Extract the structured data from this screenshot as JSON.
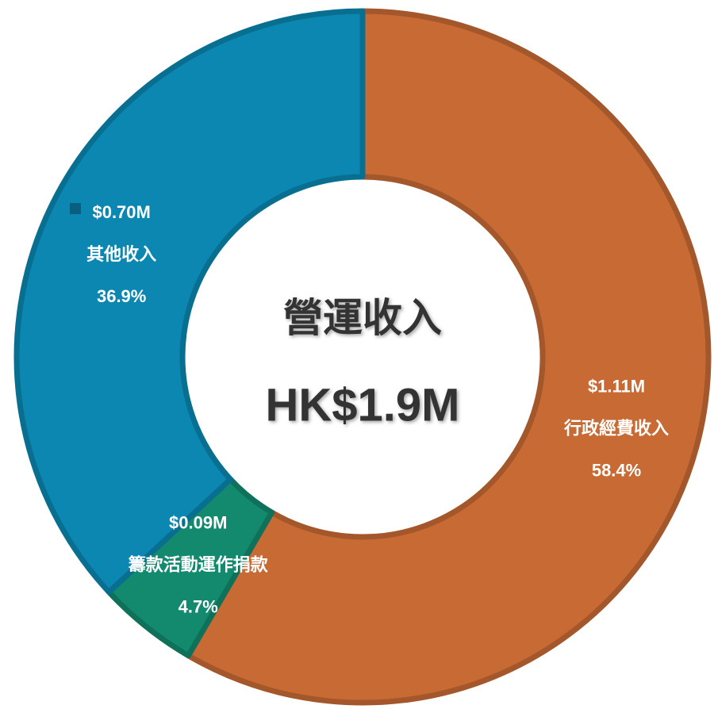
{
  "chart_data": {
    "type": "donut",
    "title": "營運收入",
    "subtitle": "HK$1.9M",
    "categories": [
      "行政經費收入",
      "籌款活動運作捐款",
      "其他收入"
    ],
    "values": [
      58.4,
      4.7,
      36.9
    ],
    "value_labels": [
      "58.4%",
      "4.7%",
      "36.9%"
    ],
    "amount_labels": [
      "$1.11M",
      "$0.09M",
      "$0.70M"
    ],
    "colors": [
      "#c76a34",
      "#138a6e",
      "#0b87b1"
    ]
  }
}
